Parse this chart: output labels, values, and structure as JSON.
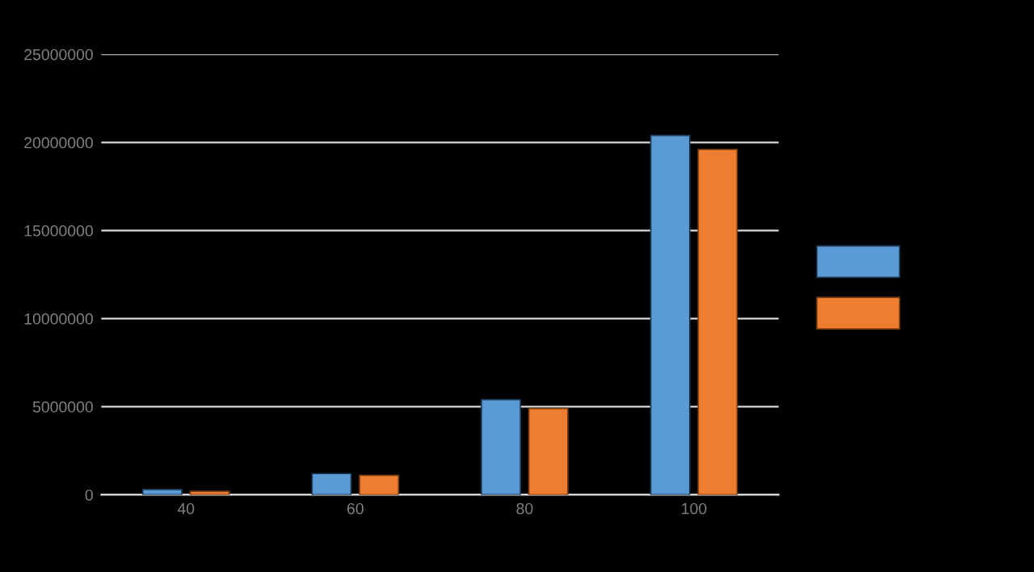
{
  "chart_data": {
    "type": "bar",
    "categories": [
      "40",
      "60",
      "80",
      "100"
    ],
    "series": [
      {
        "color": "#5b9bd5",
        "values": [
          300000,
          1200000,
          5400000,
          20400000
        ]
      },
      {
        "color": "#ed7d31",
        "values": [
          200000,
          1100000,
          4900000,
          19600000
        ]
      }
    ],
    "ylim": [
      0,
      25000000
    ],
    "yticks": [
      0,
      5000000,
      10000000,
      15000000,
      20000000,
      25000000
    ],
    "grid": "y"
  }
}
